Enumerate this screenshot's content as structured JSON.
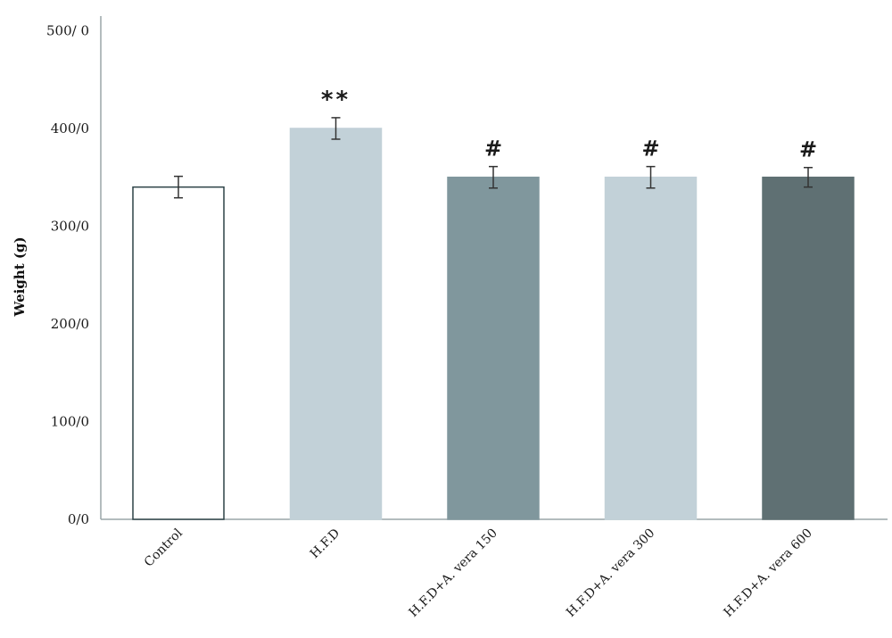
{
  "chart_data": {
    "type": "bar",
    "categories": [
      "Control",
      "H.F.D",
      "H.F.D+A. vera 150",
      "H.F.D+A. vera 300",
      "H.F.D+A. vera 600"
    ],
    "values": [
      340,
      400,
      350,
      350,
      350
    ],
    "errors": [
      11,
      11,
      11,
      11,
      10
    ],
    "significance": [
      "",
      "**",
      "#",
      "#",
      "#"
    ],
    "colors": [
      "#ffffff",
      "#c2d1d8",
      "#80979d",
      "#c2d1d8",
      "#5f7073"
    ],
    "bar_outline_colors": [
      "#2d4247",
      "#c2d1d8",
      "#80979d",
      "#c2d1d8",
      "#5f7073"
    ],
    "yticks": [
      0,
      100,
      200,
      300,
      400,
      500
    ],
    "ytick_labels": [
      "0/0",
      "100/0",
      "200/0",
      "300/0",
      "400/0",
      "500/ 0"
    ],
    "ylabel": "Weight (g)",
    "xlabel": "",
    "title": "",
    "ylim": [
      0,
      515
    ],
    "grid": false,
    "legend": "none"
  }
}
